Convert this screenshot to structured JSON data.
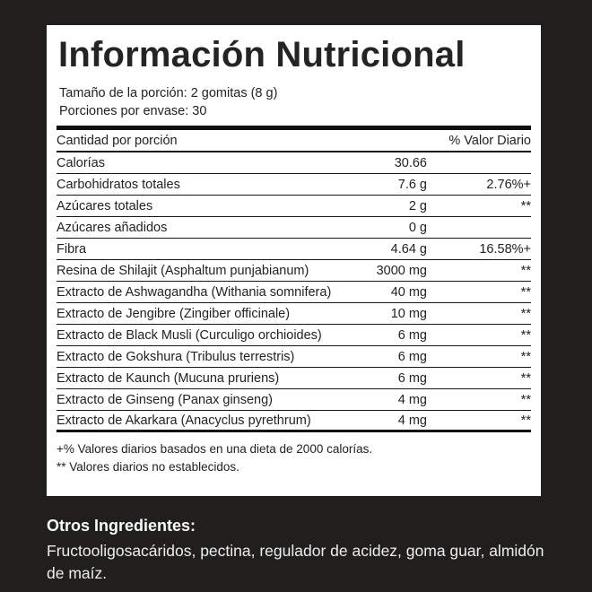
{
  "colors": {
    "background": "#211F1E",
    "panel": "#FFFFFF",
    "ink": "#1E1E1E",
    "rule": "#161616",
    "light": "#F2F2F2"
  },
  "panel": {
    "title": "Información Nutricional",
    "serving_size": "Tamaño de la porción: 2 gomitas (8 g)",
    "servings_per_container": "Porciones por envase: 30",
    "column_headers": {
      "amount": "Cantidad por porción",
      "daily_value": "% Valor Diario"
    },
    "rows": [
      {
        "label": "Calorías",
        "amount": "30.66",
        "dv": ""
      },
      {
        "label": "Carbohidratos totales",
        "amount": "7.6 g",
        "dv": "2.76%+"
      },
      {
        "label": "Azúcares totales",
        "amount": "2 g",
        "dv": "**"
      },
      {
        "label": "Azúcares añadidos",
        "amount": "0 g",
        "dv": ""
      },
      {
        "label": "Fibra",
        "amount": "4.64 g",
        "dv": "16.58%+"
      },
      {
        "label": "Resina de Shilajit (Asphaltum punjabianum)",
        "amount": "3000 mg",
        "dv": "**"
      },
      {
        "label": "Extracto de Ashwagandha (Withania somnifera)",
        "amount": "40 mg",
        "dv": "**"
      },
      {
        "label": "Extracto de Jengibre (Zingiber officinale)",
        "amount": "10 mg",
        "dv": "**"
      },
      {
        "label": "Extracto de Black Musli (Curculigo orchioides)",
        "amount": "6 mg",
        "dv": "**"
      },
      {
        "label": "Extracto de Gokshura (Tribulus terrestris)",
        "amount": "6 mg",
        "dv": "**"
      },
      {
        "label": "Extracto de Kaunch (Mucuna pruriens)",
        "amount": "6 mg",
        "dv": "**"
      },
      {
        "label": "Extracto de Ginseng (Panax ginseng)",
        "amount": "4 mg",
        "dv": "**"
      },
      {
        "label": "Extracto de Akarkara (Anacyclus pyrethrum)",
        "amount": "4 mg",
        "dv": "**"
      }
    ],
    "footnotes": [
      "+% Valores diarios basados en una dieta de 2000 calorías.",
      "** Valores diarios no establecidos."
    ]
  },
  "other_ingredients": {
    "heading": "Otros Ingredientes:",
    "text": "Fructooligosacáridos, pectina, regulador de acidez, goma guar, almidón de maíz."
  }
}
